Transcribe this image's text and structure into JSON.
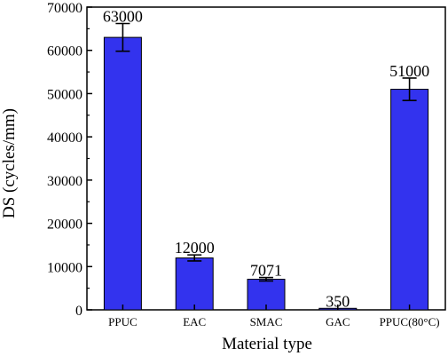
{
  "chart_data": {
    "type": "bar",
    "title": "",
    "xlabel": "Material type",
    "ylabel": "DS (cycles/mm)",
    "ylim": [
      0,
      70000
    ],
    "yticks": [
      0,
      10000,
      20000,
      30000,
      40000,
      50000,
      60000,
      70000
    ],
    "categories": [
      "PPUC",
      "EAC",
      "SMAC",
      "GAC",
      "PPUC(80°C)"
    ],
    "values": [
      63000,
      12000,
      7071,
      350,
      51000
    ],
    "errors": [
      3200,
      700,
      400,
      0,
      2600
    ],
    "data_labels": [
      "63000",
      "12000",
      "7071",
      "350",
      "51000"
    ],
    "bar_color": "#3333ee",
    "grid": false,
    "legend": "none"
  }
}
